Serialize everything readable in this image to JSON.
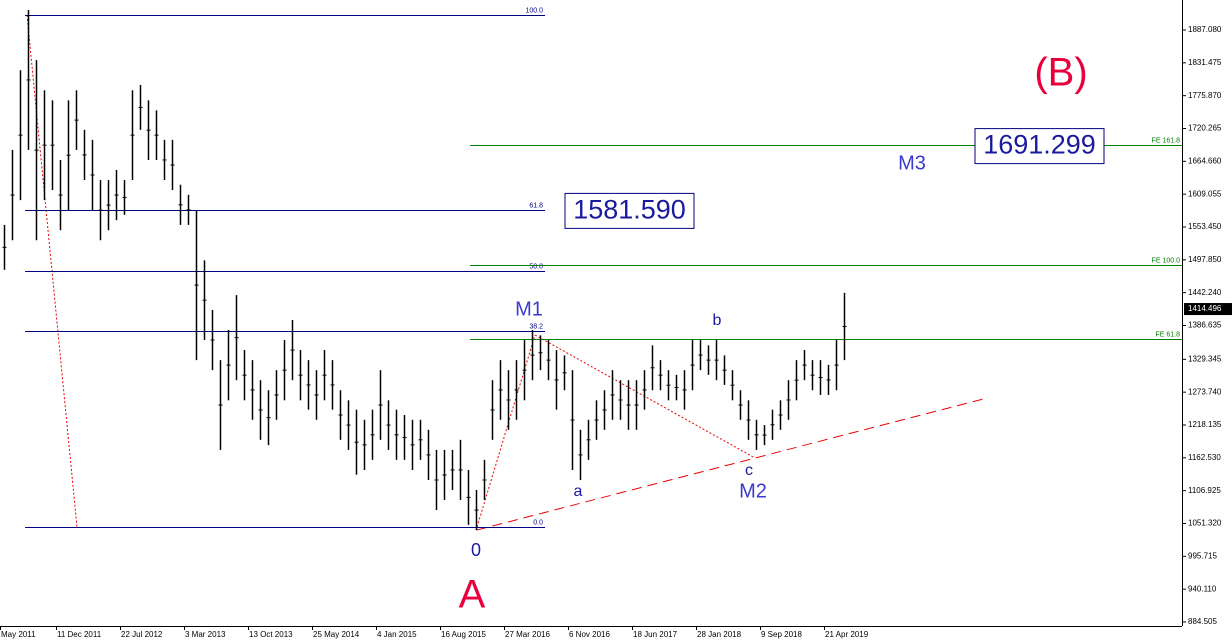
{
  "chart_data": {
    "type": "hlbar",
    "color": "#000000",
    "categories": [
      "May 2011",
      null,
      null,
      null,
      null,
      null,
      null,
      "11 Dec 2011",
      null,
      null,
      null,
      null,
      null,
      null,
      null,
      "22 Jul 2012",
      null,
      null,
      null,
      null,
      null,
      null,
      null,
      "3 Mar 2013",
      null,
      null,
      null,
      null,
      null,
      null,
      null,
      "13 Oct 2013",
      null,
      null,
      null,
      null,
      null,
      null,
      null,
      "25 May 2014",
      null,
      null,
      null,
      null,
      null,
      null,
      null,
      "4 Jan 2015",
      null,
      null,
      null,
      null,
      null,
      null,
      null,
      "16 Aug 2015",
      null,
      null,
      null,
      null,
      null,
      null,
      null,
      "27 Mar 2016",
      null,
      null,
      null,
      null,
      null,
      null,
      null,
      "6 Nov 2016",
      null,
      null,
      null,
      null,
      null,
      null,
      null,
      "18 Jun 2017",
      null,
      null,
      null,
      null,
      null,
      null,
      null,
      "28 Jan 2018",
      null,
      null,
      null,
      null,
      null,
      null,
      null,
      "9 Sep 2018",
      null,
      null,
      null,
      null,
      null,
      null,
      null,
      "21 Apr 2019",
      null,
      null
    ],
    "high": [
      1557,
      1684,
      1819,
      1921,
      1836,
      1785,
      1768,
      1667,
      1768,
      1785,
      1718,
      1701,
      1633,
      1633,
      1650,
      1633,
      1785,
      1794,
      1768,
      1751,
      1701,
      1701,
      1625,
      1608,
      1582,
      1497,
      1413,
      1328,
      1379,
      1438,
      1345,
      1328,
      1294,
      1277,
      1311,
      1362,
      1396,
      1345,
      1328,
      1311,
      1345,
      1328,
      1277,
      1260,
      1244,
      1227,
      1244,
      1311,
      1260,
      1244,
      1235,
      1227,
      1227,
      1210,
      1176,
      1176,
      1176,
      1193,
      1142,
      1108,
      1159,
      1294,
      1328,
      1311,
      1328,
      1362,
      1379,
      1370,
      1362,
      1345,
      1336,
      1311,
      1210,
      1227,
      1260,
      1277,
      1311,
      1294,
      1294,
      1294,
      1311,
      1353,
      1328,
      1311,
      1303,
      1311,
      1362,
      1362,
      1353,
      1362,
      1336,
      1311,
      1277,
      1260,
      1227,
      1218,
      1244,
      1260,
      1294,
      1328,
      1345,
      1328,
      1328,
      1320,
      1362,
      1442
    ],
    "low": [
      1481,
      1531,
      1599,
      1684,
      1531,
      1599,
      1616,
      1548,
      1582,
      1684,
      1633,
      1582,
      1531,
      1548,
      1565,
      1574,
      1633,
      1718,
      1667,
      1667,
      1633,
      1616,
      1557,
      1557,
      1328,
      1362,
      1311,
      1176,
      1260,
      1294,
      1260,
      1227,
      1193,
      1184,
      1227,
      1260,
      1294,
      1260,
      1244,
      1227,
      1260,
      1244,
      1193,
      1176,
      1134,
      1142,
      1159,
      1193,
      1176,
      1159,
      1159,
      1142,
      1159,
      1125,
      1074,
      1091,
      1108,
      1091,
      1049,
      1040,
      1091,
      1193,
      1227,
      1210,
      1227,
      1260,
      1294,
      1311,
      1294,
      1244,
      1277,
      1142,
      1125,
      1159,
      1193,
      1210,
      1227,
      1227,
      1210,
      1210,
      1244,
      1277,
      1277,
      1260,
      1260,
      1244,
      1277,
      1311,
      1303,
      1294,
      1286,
      1260,
      1227,
      1193,
      1176,
      1184,
      1193,
      1210,
      1227,
      1260,
      1294,
      1277,
      1269,
      1269,
      1277,
      1328
    ],
    "ylim": [
      877.7,
      1937.9
    ],
    "yticks": [
      {
        "value": 1887.08,
        "label": "1887.080"
      },
      {
        "value": 1831.475,
        "label": "1831.475"
      },
      {
        "value": 1775.87,
        "label": "1775.870"
      },
      {
        "value": 1720.265,
        "label": "1720.265"
      },
      {
        "value": 1664.66,
        "label": "1664.660"
      },
      {
        "value": 1609.055,
        "label": "1609.055"
      },
      {
        "value": 1553.45,
        "label": "1553.450"
      },
      {
        "value": 1497.85,
        "label": "1497.850"
      },
      {
        "value": 1442.24,
        "label": "1442.240"
      },
      {
        "value": 1386.635,
        "label": "1386.635"
      },
      {
        "value": 1329.345,
        "label": "1329.345"
      },
      {
        "value": 1273.74,
        "label": "1273.740"
      },
      {
        "value": 1218.135,
        "label": "1218.135"
      },
      {
        "value": 1162.53,
        "label": "1162.530"
      },
      {
        "value": 1106.925,
        "label": "1106.925"
      },
      {
        "value": 1051.32,
        "label": "1051.320"
      },
      {
        "value": 995.715,
        "label": "995.715"
      },
      {
        "value": 940.11,
        "label": "940.110"
      },
      {
        "value": 884.505,
        "label": "884.505"
      }
    ],
    "current_price": {
      "value": 1414.496,
      "label": "1414.496"
    },
    "fib_levels": [
      {
        "label": "100.0",
        "value": 1912
      },
      {
        "label": "61.8",
        "value": 1582
      },
      {
        "label": "50.0",
        "value": 1479
      },
      {
        "label": "38.2",
        "value": 1377
      },
      {
        "label": "0.0",
        "value": 1045.5
      }
    ],
    "fe_levels": [
      {
        "label": "FE 161.8",
        "value": 1692
      },
      {
        "label": "FE 100.0",
        "value": 1489
      },
      {
        "label": "FE 61.8",
        "value": 1364
      }
    ],
    "price_boxes": [
      {
        "value": 1581.59,
        "label": "1581.590"
      },
      {
        "value": 1691.299,
        "label": "1691.299"
      }
    ],
    "wave_labels": [
      "(B)",
      "M3",
      "M1",
      "b",
      "a",
      "c",
      "M2",
      "0",
      "A"
    ]
  }
}
